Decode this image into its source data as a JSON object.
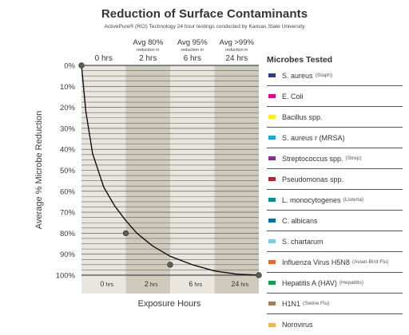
{
  "header": {
    "title": "Reduction of Surface Contaminants",
    "subtitle": "ActivePure® (RCI) Technology 24 hour testings conducted by Kansas State University"
  },
  "chart_data": {
    "type": "line",
    "title": "Reduction of Surface Contaminants",
    "subtitle": "ActivePure® (RCI) Technology 24 hour testings conducted by Kansas State University",
    "xlabel": "Exposure Hours",
    "ylabel": "Average % Microbe Reduction",
    "categories": [
      "0 hrs",
      "2 hrs",
      "6 hrs",
      "24 hrs"
    ],
    "bottom_tick_labels": [
      {
        "num": "0",
        "unit": "hrs"
      },
      {
        "num": "2",
        "unit": "hrs"
      },
      {
        "num": "6",
        "unit": "hrs"
      },
      {
        "num": "24",
        "unit": "hrs"
      }
    ],
    "top_headers": [
      {
        "avg": "",
        "small": "",
        "time": "0 hrs"
      },
      {
        "avg": "Avg 80%",
        "small": "reduction in",
        "time": "2 hrs"
      },
      {
        "avg": "Avg 95%",
        "small": "reduction in",
        "time": "6 hrs"
      },
      {
        "avg": "Avg >99%",
        "small": "reduction in",
        "time": "24 hrs"
      }
    ],
    "y_tick_labels": [
      "0%",
      "10%",
      "20%",
      "30%",
      "40%",
      "50%",
      "60%",
      "70%",
      "80%",
      "90%",
      "100%"
    ],
    "ylim": [
      0,
      100
    ],
    "y_inverted": true,
    "grid": true,
    "markers": [
      {
        "category": "0 hrs",
        "value": 0
      },
      {
        "category": "2 hrs",
        "value": 80
      },
      {
        "category": "6 hrs",
        "value": 95
      },
      {
        "category": "24 hrs",
        "value": 100
      }
    ],
    "curve": [
      [
        0,
        0
      ],
      [
        0.1,
        22
      ],
      [
        0.25,
        42
      ],
      [
        0.5,
        58
      ],
      [
        0.75,
        67
      ],
      [
        1.0,
        74
      ],
      [
        1.25,
        80
      ],
      [
        1.6,
        86
      ],
      [
        2.0,
        91
      ],
      [
        2.5,
        95
      ],
      [
        3.0,
        98
      ],
      [
        3.5,
        99.5
      ],
      [
        4.0,
        100
      ]
    ],
    "colors": {
      "band_light": "#e8e6df",
      "band_dark": "#cfcbbc",
      "line": "#111111",
      "marker": "#5b5b5b",
      "grid": "#4a4a4a"
    }
  },
  "legend": {
    "title": "Microbes Tested",
    "items": [
      {
        "label": "S. aureus",
        "sub": "(Staph)",
        "color": "#2b3990"
      },
      {
        "label": "E. Coli",
        "sub": "",
        "color": "#ec008c"
      },
      {
        "label": "Bacillus spp.",
        "sub": "",
        "color": "#fff200"
      },
      {
        "label": "S. aureus r (MRSA)",
        "sub": "",
        "color": "#00aeef"
      },
      {
        "label": "Streptococcus spp.",
        "sub": "(Strep)",
        "color": "#92278f"
      },
      {
        "label": "Pseudomonas spp.",
        "sub": "",
        "color": "#be1e2d"
      },
      {
        "label": "L. monocytogenes",
        "sub": "(Listeria)",
        "color": "#009292"
      },
      {
        "label": "C. albicans",
        "sub": "",
        "color": "#0072bc"
      },
      {
        "label": "S. chartarum",
        "sub": "",
        "color": "#6dcff6"
      },
      {
        "label": "Influenza Virus H5N8",
        "sub": "(Avian-Bird Flu)",
        "color": "#f26522"
      },
      {
        "label": "Hepatitis A (HAV)",
        "sub": "(Hepatitis)",
        "color": "#00a651"
      },
      {
        "label": "H1N1",
        "sub": "(Swine Flu)",
        "color": "#a97c50"
      },
      {
        "label": "Norovirus",
        "sub": "",
        "color": "#fbb040"
      }
    ]
  }
}
